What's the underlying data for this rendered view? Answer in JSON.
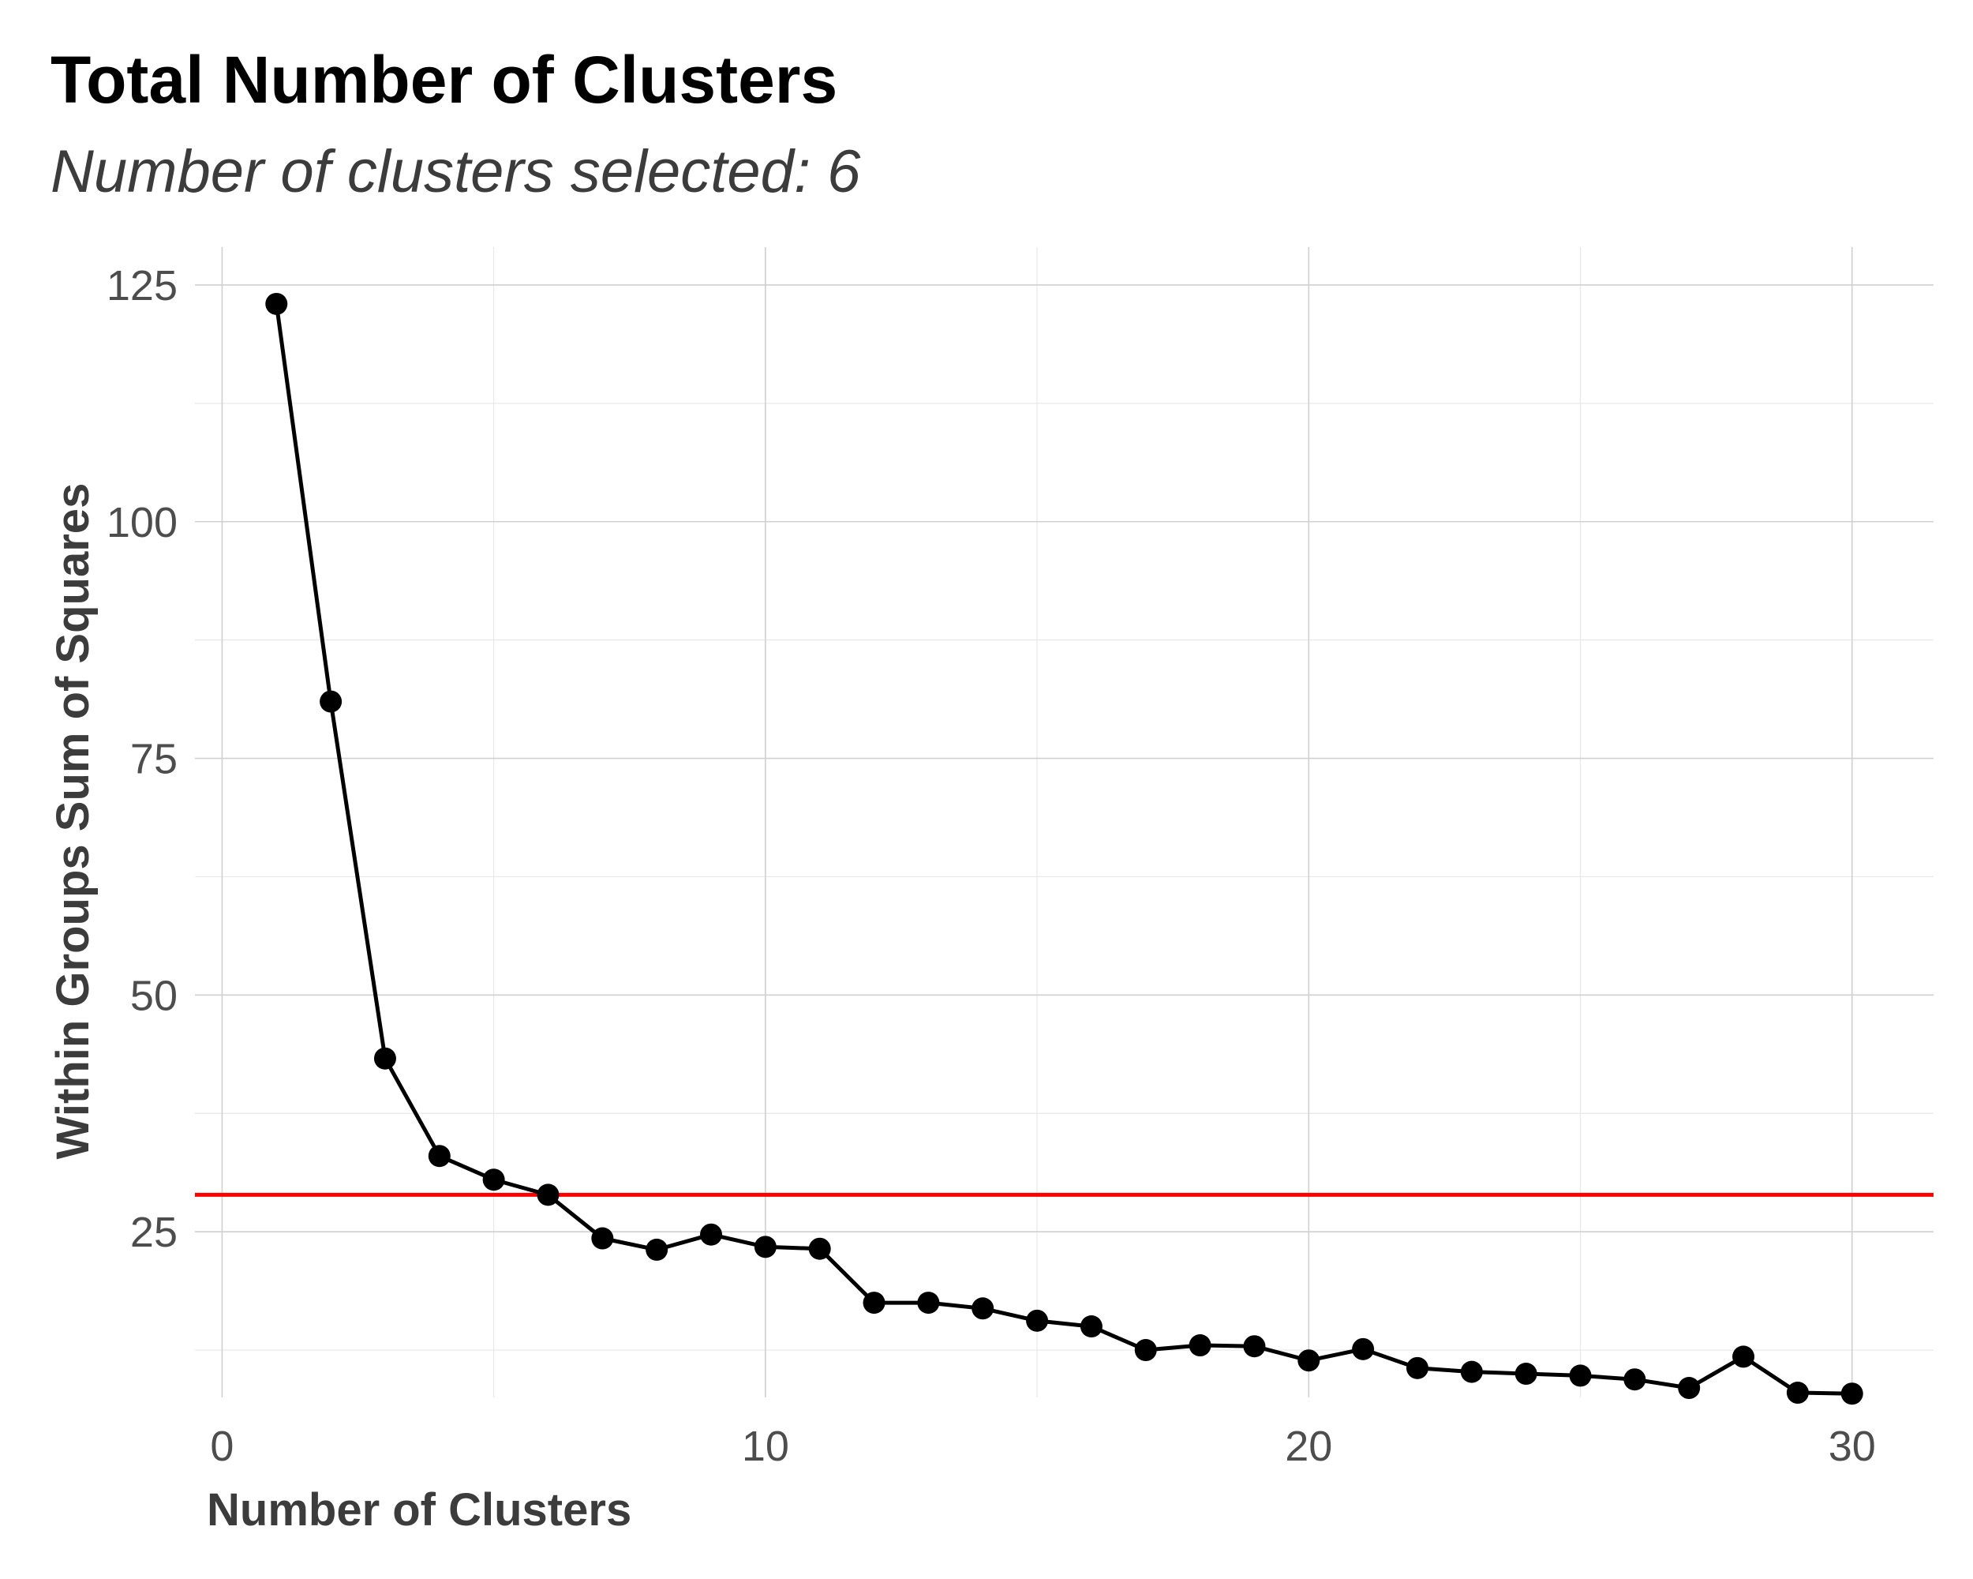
{
  "chart_data": {
    "type": "line",
    "title": "Total Number of Clusters",
    "subtitle": "Number of clusters selected: 6",
    "xlabel": "Number of Clusters",
    "ylabel": "Within Groups Sum of Squares",
    "xlim": [
      -0.5,
      31.5
    ],
    "ylim": [
      7.5,
      129
    ],
    "x_ticks": [
      0,
      10,
      20,
      30
    ],
    "x_minor_ticks": [
      5,
      15,
      25
    ],
    "y_ticks": [
      25,
      50,
      75,
      100,
      125
    ],
    "y_minor_ticks": [
      12.5,
      37.5,
      62.5,
      87.5,
      112.5
    ],
    "grid": true,
    "series": [
      {
        "color": "#000000",
        "points": [
          {
            "x": 1,
            "y": 123.0
          },
          {
            "x": 2,
            "y": 81.0
          },
          {
            "x": 3,
            "y": 43.3
          },
          {
            "x": 4,
            "y": 33.0
          },
          {
            "x": 5,
            "y": 30.5
          },
          {
            "x": 6,
            "y": 28.9
          },
          {
            "x": 7,
            "y": 24.3
          },
          {
            "x": 8,
            "y": 23.1
          },
          {
            "x": 9,
            "y": 24.7
          },
          {
            "x": 10,
            "y": 23.4
          },
          {
            "x": 11,
            "y": 23.2
          },
          {
            "x": 12,
            "y": 17.5
          },
          {
            "x": 13,
            "y": 17.5
          },
          {
            "x": 14,
            "y": 16.9
          },
          {
            "x": 15,
            "y": 15.6
          },
          {
            "x": 16,
            "y": 15.0
          },
          {
            "x": 17,
            "y": 12.5
          },
          {
            "x": 18,
            "y": 13.0
          },
          {
            "x": 19,
            "y": 12.9
          },
          {
            "x": 20,
            "y": 11.4
          },
          {
            "x": 21,
            "y": 12.6
          },
          {
            "x": 22,
            "y": 10.6
          },
          {
            "x": 23,
            "y": 10.2
          },
          {
            "x": 24,
            "y": 10.0
          },
          {
            "x": 25,
            "y": 9.8
          },
          {
            "x": 26,
            "y": 9.4
          },
          {
            "x": 27,
            "y": 8.5
          },
          {
            "x": 28,
            "y": 11.8
          },
          {
            "x": 29,
            "y": 8.0
          },
          {
            "x": 30,
            "y": 7.9
          }
        ]
      }
    ],
    "hline": {
      "y": 28.9,
      "color": "#ff0000"
    }
  }
}
